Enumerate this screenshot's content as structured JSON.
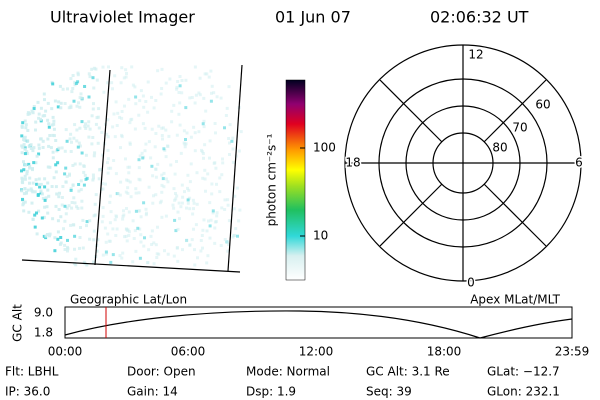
{
  "header": {
    "instrument": "Ultraviolet Imager",
    "date": "01 Jun 07",
    "time": "02:06:32 UT"
  },
  "colorbar": {
    "label": "photon cm⁻²s⁻¹",
    "ticks": [
      "100",
      "10"
    ]
  },
  "polar": {
    "clock": [
      "12",
      "18",
      "6",
      "0"
    ],
    "latitudes": [
      "60",
      "70",
      "80"
    ]
  },
  "timeline": {
    "left_title": "Geographic Lat/Lon",
    "right_title": "Apex MLat/MLT",
    "ylabel": "GC Alt",
    "yticks": [
      "9.0",
      "1.8"
    ],
    "xticks": [
      "00:00",
      "06:00",
      "12:00",
      "18:00",
      "23:59"
    ]
  },
  "info": [
    [
      "Flt: LBHL",
      "Door: Open",
      "Mode: Normal",
      "GC Alt: 3.1 Re",
      "GLat: −12.7"
    ],
    [
      "IP: 36.0",
      "Gain: 14",
      "Dsp:    1.9",
      "Seq: 39",
      "GLon: 232.1"
    ]
  ]
}
